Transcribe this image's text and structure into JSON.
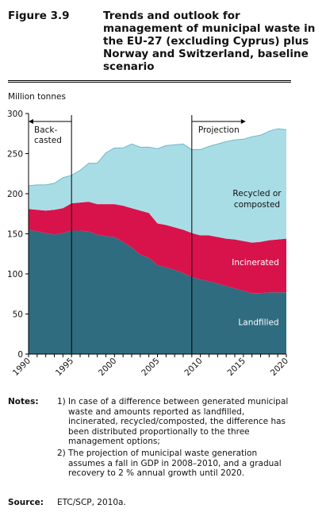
{
  "figure": {
    "label": "Figure 3.9",
    "title": "Trends and outlook for management of municipal waste in the EU-27 (excluding Cyprus) plus Norway and Switzerland, baseline scenario"
  },
  "chart_data": {
    "type": "area",
    "stacked": true,
    "ylabel": "Million tonnes",
    "xlabel": "",
    "xlim": [
      1990,
      2020
    ],
    "ylim": [
      0,
      300
    ],
    "x_ticks": [
      1990,
      1995,
      2000,
      2005,
      2010,
      2015,
      2020
    ],
    "y_ticks": [
      0,
      50,
      100,
      150,
      200,
      250,
      300
    ],
    "x": [
      1990,
      1991,
      1992,
      1993,
      1994,
      1995,
      1996,
      1997,
      1998,
      1999,
      2000,
      2001,
      2002,
      2003,
      2004,
      2005,
      2006,
      2007,
      2008,
      2009,
      2010,
      2011,
      2012,
      2013,
      2014,
      2015,
      2016,
      2017,
      2018,
      2019,
      2020
    ],
    "series": [
      {
        "name": "Landfilled",
        "color": "#2f6c80",
        "values": [
          155,
          153,
          151,
          149,
          151,
          154,
          154,
          153,
          149,
          147,
          146,
          140,
          133,
          124,
          120,
          111,
          108,
          105,
          101,
          96,
          93,
          91,
          88,
          85,
          82,
          79,
          76,
          76,
          77,
          77,
          77
        ]
      },
      {
        "name": "Incinerated",
        "color": "#d8134b",
        "values": [
          26,
          27,
          28,
          31,
          31,
          34,
          35,
          37,
          38,
          40,
          41,
          45,
          49,
          55,
          56,
          52,
          53,
          53,
          54,
          55,
          55,
          57,
          58,
          59,
          61,
          62,
          63,
          64,
          65,
          66,
          67
        ]
      },
      {
        "name": "Recycled or composted",
        "color": "#a9dde6",
        "values": [
          29,
          31,
          32,
          33,
          38,
          35,
          40,
          48,
          51,
          64,
          70,
          72,
          80,
          79,
          82,
          93,
          99,
          103,
          107,
          104,
          107,
          111,
          116,
          121,
          124,
          127,
          132,
          133,
          136,
          138,
          136
        ]
      }
    ],
    "series_labels": [
      "Landfilled",
      "Incinerated",
      "Recycled or composted"
    ],
    "annotations": [
      {
        "text": "Back-casted",
        "lines": [
          "Back-",
          "casted"
        ],
        "x_from": 1990,
        "x_to": 1995
      },
      {
        "text": "Projection",
        "x_from": 2009,
        "x_to": 2020
      }
    ],
    "markers": [
      1995,
      2009
    ],
    "grid": false,
    "legend": "inline labels"
  },
  "notes": {
    "label": "Notes:",
    "items": [
      {
        "num": "1)",
        "text": "In case of a difference between generated municipal waste and amounts reported as landfilled, incinerated, recycled/composted, the difference has been distributed proportionally to the three management options;"
      },
      {
        "num": "2)",
        "text": "The projection of municipal waste generation assumes a fall in GDP in 2008–2010, and a gradual recovery to 2 % annual growth until 2020."
      }
    ]
  },
  "source": {
    "label": "Source:",
    "text": "ETC/SCP, 2010a."
  }
}
